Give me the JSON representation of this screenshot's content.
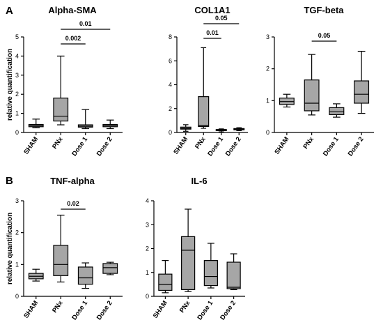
{
  "panel_labels": [
    "A",
    "B"
  ],
  "chart_data": [
    {
      "type": "box",
      "title": "Alpha-SMA",
      "ylabel": "relative quantification",
      "ylim": [
        0,
        5
      ],
      "yticks": [
        0,
        1,
        2,
        3,
        4,
        5
      ],
      "categories": [
        "SHAM",
        "PNx",
        "Dose 1",
        "Dose 2"
      ],
      "boxes": [
        {
          "min": 0.25,
          "q1": 0.3,
          "median": 0.35,
          "q3": 0.42,
          "max": 0.7
        },
        {
          "min": 0.4,
          "q1": 0.6,
          "median": 0.85,
          "q3": 1.8,
          "max": 4.0
        },
        {
          "min": 0.2,
          "q1": 0.28,
          "median": 0.33,
          "q3": 0.4,
          "max": 1.2
        },
        {
          "min": 0.2,
          "q1": 0.3,
          "median": 0.36,
          "q3": 0.42,
          "max": 0.65
        }
      ],
      "significance": [
        {
          "from": 1,
          "to": 2,
          "label": "0.002"
        },
        {
          "from": 1,
          "to": 3,
          "label": "0.01"
        }
      ]
    },
    {
      "type": "box",
      "title": "COL1A1",
      "ylabel": "",
      "ylim": [
        0,
        8
      ],
      "yticks": [
        0,
        2,
        4,
        6,
        8
      ],
      "categories": [
        "SHAM",
        "PNx",
        "Dose 1",
        "Dose 2"
      ],
      "boxes": [
        {
          "min": 0.1,
          "q1": 0.28,
          "median": 0.35,
          "q3": 0.45,
          "max": 0.65
        },
        {
          "min": 0.35,
          "q1": 0.5,
          "median": 0.6,
          "q3": 3.0,
          "max": 7.1
        },
        {
          "min": 0.05,
          "q1": 0.15,
          "median": 0.2,
          "q3": 0.25,
          "max": 0.3
        },
        {
          "min": 0.15,
          "q1": 0.22,
          "median": 0.28,
          "q3": 0.33,
          "max": 0.4
        }
      ],
      "significance": [
        {
          "from": 1,
          "to": 2,
          "label": "0.01"
        },
        {
          "from": 1,
          "to": 3,
          "label": "0.05"
        }
      ]
    },
    {
      "type": "box",
      "title": "TGF-beta",
      "ylabel": "",
      "ylim": [
        0,
        3
      ],
      "yticks": [
        0,
        1,
        2,
        3
      ],
      "categories": [
        "SHAM",
        "PNx",
        "Dose 1",
        "Dose 2"
      ],
      "boxes": [
        {
          "min": 0.8,
          "q1": 0.88,
          "median": 0.97,
          "q3": 1.08,
          "max": 1.2
        },
        {
          "min": 0.55,
          "q1": 0.68,
          "median": 0.92,
          "q3": 1.65,
          "max": 2.45
        },
        {
          "min": 0.48,
          "q1": 0.56,
          "median": 0.65,
          "q3": 0.78,
          "max": 0.9
        },
        {
          "min": 0.6,
          "q1": 0.92,
          "median": 1.2,
          "q3": 1.62,
          "max": 2.55
        }
      ],
      "significance": [
        {
          "from": 1,
          "to": 2,
          "label": "0.05"
        }
      ]
    },
    {
      "type": "box",
      "title": "TNF-alpha",
      "ylabel": "relative quantification",
      "ylim": [
        0,
        3
      ],
      "yticks": [
        0,
        1,
        2,
        3
      ],
      "categories": [
        "SHAM",
        "PNx",
        "Dose 1",
        "Dose 2"
      ],
      "boxes": [
        {
          "min": 0.48,
          "q1": 0.55,
          "median": 0.63,
          "q3": 0.72,
          "max": 0.85
        },
        {
          "min": 0.45,
          "q1": 0.65,
          "median": 1.0,
          "q3": 1.6,
          "max": 2.55
        },
        {
          "min": 0.25,
          "q1": 0.38,
          "median": 0.58,
          "q3": 0.92,
          "max": 1.05
        },
        {
          "min": 0.68,
          "q1": 0.72,
          "median": 0.9,
          "q3": 1.03,
          "max": 1.07
        }
      ],
      "significance": [
        {
          "from": 1,
          "to": 2,
          "label": "0.02"
        }
      ]
    },
    {
      "type": "box",
      "title": "IL-6",
      "ylabel": "",
      "ylim": [
        0,
        4
      ],
      "yticks": [
        0,
        1,
        2,
        3,
        4
      ],
      "categories": [
        "SHAM",
        "PNx",
        "Dose 1",
        "Dose 2"
      ],
      "boxes": [
        {
          "min": 0.15,
          "q1": 0.25,
          "median": 0.5,
          "q3": 0.93,
          "max": 1.5
        },
        {
          "min": 0.2,
          "q1": 0.28,
          "median": 1.93,
          "q3": 2.5,
          "max": 3.65
        },
        {
          "min": 0.35,
          "q1": 0.45,
          "median": 0.83,
          "q3": 1.5,
          "max": 2.22
        },
        {
          "min": 0.28,
          "q1": 0.32,
          "median": 0.38,
          "q3": 1.43,
          "max": 1.78
        }
      ],
      "significance": []
    }
  ]
}
